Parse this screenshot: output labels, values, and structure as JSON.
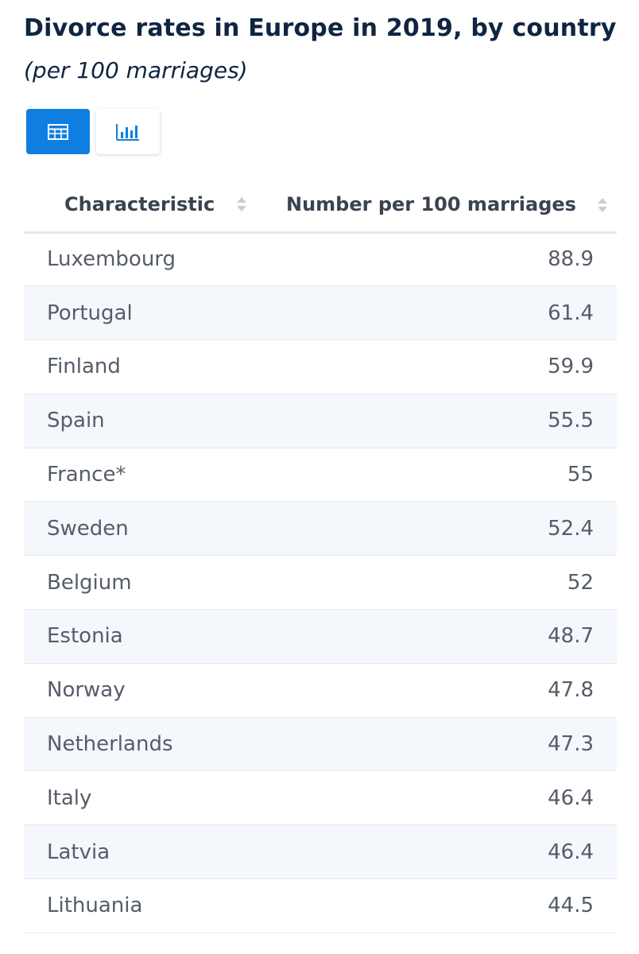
{
  "header": {
    "title": "Divorce rates in Europe in 2019, by country",
    "subtitle": "(per 100 marriages)"
  },
  "view_toggle": {
    "table_icon": "table-icon",
    "chart_icon": "bar-chart-icon",
    "active_view": "table",
    "accent_color": "#0e7fe0"
  },
  "chart_data": {
    "type": "table",
    "title": "Divorce rates in Europe in 2019, by country",
    "subtitle": "(per 100 marriages)",
    "columns": [
      "Characteristic",
      "Number per 100 marriages"
    ],
    "rows": [
      {
        "country": "Luxembourg",
        "value": "88.9"
      },
      {
        "country": "Portugal",
        "value": "61.4"
      },
      {
        "country": "Finland",
        "value": "59.9"
      },
      {
        "country": "Spain",
        "value": "55.5"
      },
      {
        "country": "France*",
        "value": "55"
      },
      {
        "country": "Sweden",
        "value": "52.4"
      },
      {
        "country": "Belgium",
        "value": "52"
      },
      {
        "country": "Estonia",
        "value": "48.7"
      },
      {
        "country": "Norway",
        "value": "47.8"
      },
      {
        "country": "Netherlands",
        "value": "47.3"
      },
      {
        "country": "Italy",
        "value": "46.4"
      },
      {
        "country": "Latvia",
        "value": "46.4"
      },
      {
        "country": "Lithuania",
        "value": "44.5"
      }
    ]
  }
}
